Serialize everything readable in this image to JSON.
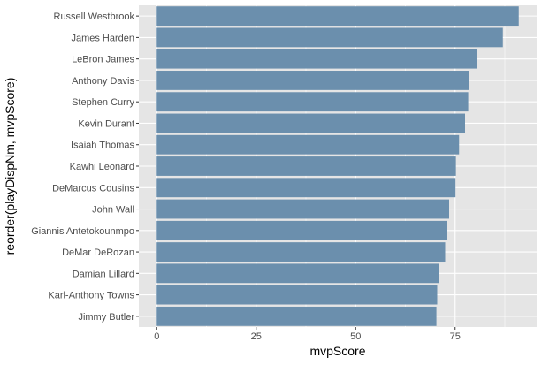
{
  "colors": {
    "panel_background": "#e5e5e5",
    "gridline": "#ffffff",
    "bar_fill": "#6b8fad",
    "tick_text": "#4d4d4d",
    "tick_mark": "#333333",
    "axis_title": "#000000"
  },
  "chart_data": {
    "type": "bar",
    "orientation": "horizontal",
    "title": "",
    "xlabel": "mvpScore",
    "ylabel": "reorder(playDispNm, mvpScore)",
    "xlim": [
      -4.5,
      95.5
    ],
    "x_ticks": [
      0,
      25,
      50,
      75
    ],
    "grid": true,
    "legend": "none",
    "categories": [
      "Russell Westbrook",
      "James Harden",
      "LeBron James",
      "Anthony Davis",
      "Stephen Curry",
      "Kevin Durant",
      "Isaiah Thomas",
      "Kawhi Leonard",
      "DeMarcus Cousins",
      "John Wall",
      "Giannis Antetokounmpo",
      "DeMar DeRozan",
      "Damian Lillard",
      "Karl-Anthony Towns",
      "Jimmy Butler"
    ],
    "values": [
      91.0,
      87.0,
      80.5,
      78.5,
      78.3,
      77.5,
      76.0,
      75.2,
      75.1,
      73.5,
      72.9,
      72.5,
      71.0,
      70.5,
      70.3
    ]
  }
}
